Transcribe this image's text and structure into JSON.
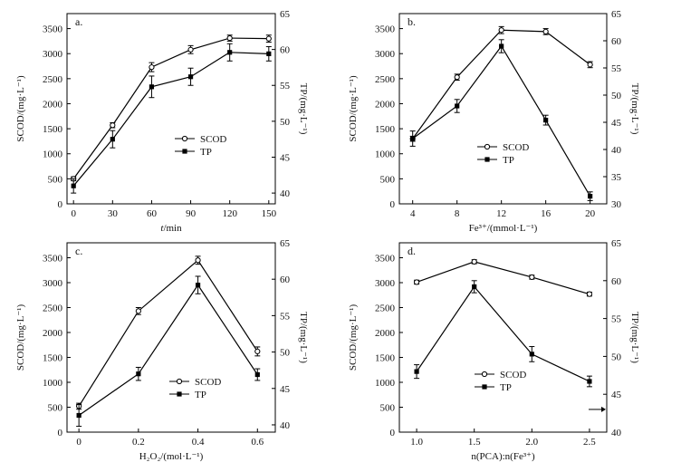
{
  "chart_data": [
    {
      "type": "line",
      "panel_label": "a.",
      "xlabel_italic": "t",
      "xlabel_rest": "/min",
      "ylabel": "SCOD/(mg·L⁻¹)",
      "y2label": "TP/(mg·L⁻¹)",
      "x_ticks": [
        "0",
        "30",
        "60",
        "90",
        "120",
        "150"
      ],
      "x": [
        0,
        30,
        60,
        90,
        120,
        150
      ],
      "xlim": [
        -5,
        155
      ],
      "ylim": [
        0,
        3800
      ],
      "y_ticks": [
        "0",
        "500",
        "1000",
        "1500",
        "2000",
        "2500",
        "3000",
        "3500"
      ],
      "y2lim": [
        38.5,
        65
      ],
      "y2_ticks": [
        "40",
        "45",
        "50",
        "55",
        "60",
        "65"
      ],
      "legend": [
        "SCOD",
        "TP"
      ],
      "series": [
        {
          "name": "SCOD",
          "axis": "left",
          "marker": "open",
          "values": [
            500,
            1570,
            2730,
            3080,
            3310,
            3300
          ],
          "errors": [
            40,
            50,
            90,
            80,
            60,
            70
          ]
        },
        {
          "name": "TP",
          "axis": "right",
          "marker": "filled",
          "values": [
            41.0,
            47.5,
            54.8,
            56.2,
            59.6,
            59.4
          ],
          "errors": [
            1.0,
            1.2,
            1.5,
            1.2,
            1.2,
            1.0
          ]
        }
      ]
    },
    {
      "type": "line",
      "panel_label": "b.",
      "xlabel_html": "Fe³⁺/(mmol·L⁻¹)",
      "ylabel": "SCOD/(mg·L⁻¹)",
      "y2label": "TP/(mg·L⁻¹)",
      "x_ticks": [
        "4",
        "8",
        "12",
        "16",
        "20"
      ],
      "x": [
        4,
        8,
        12,
        16,
        20
      ],
      "xlim": [
        2.8,
        21.5
      ],
      "ylim": [
        0,
        3800
      ],
      "y_ticks": [
        "0",
        "500",
        "1000",
        "1500",
        "2000",
        "2500",
        "3000",
        "3500"
      ],
      "y2lim": [
        30,
        65
      ],
      "y2_ticks": [
        "30",
        "35",
        "40",
        "45",
        "50",
        "55",
        "60",
        "65"
      ],
      "legend": [
        "SCOD",
        "TP"
      ],
      "series": [
        {
          "name": "SCOD",
          "axis": "left",
          "marker": "open",
          "values": [
            1300,
            2530,
            3470,
            3440,
            2780
          ],
          "errors": [
            50,
            60,
            70,
            60,
            60
          ]
        },
        {
          "name": "TP",
          "axis": "right",
          "marker": "filled",
          "values": [
            42.0,
            48.0,
            59.0,
            45.4,
            31.4
          ],
          "errors": [
            1.4,
            1.2,
            1.2,
            0.9,
            0.8
          ]
        }
      ]
    },
    {
      "type": "line",
      "panel_label": "c.",
      "xlabel_html": "H₂O₂/(mol·L⁻¹)",
      "ylabel": "SCOD/(mg·L⁻¹)",
      "y2label": "TP/(mg·L⁻¹)",
      "x_ticks": [
        "0",
        "0.2",
        "0.4",
        "0.6"
      ],
      "x": [
        0,
        0.2,
        0.4,
        0.6
      ],
      "xlim": [
        -0.04,
        0.66
      ],
      "ylim": [
        0,
        3800
      ],
      "y_ticks": [
        "0",
        "500",
        "1000",
        "1500",
        "2000",
        "2500",
        "3000",
        "3500"
      ],
      "y2lim": [
        39,
        65
      ],
      "y2_ticks": [
        "40",
        "45",
        "50",
        "55",
        "60",
        "65"
      ],
      "legend": [
        "SCOD",
        "TP"
      ],
      "series": [
        {
          "name": "SCOD",
          "axis": "left",
          "marker": "open",
          "values": [
            520,
            2430,
            3450,
            1620
          ],
          "errors": [
            60,
            70,
            80,
            90
          ]
        },
        {
          "name": "TP",
          "axis": "right",
          "marker": "filled",
          "values": [
            41.3,
            47.0,
            59.2,
            46.9
          ],
          "errors": [
            1.5,
            0.9,
            1.2,
            0.8
          ]
        }
      ]
    },
    {
      "type": "line",
      "panel_label": "d.",
      "xlabel_html": "n(PCA):n(Fe³⁺)",
      "ylabel": "SCOD/(mg·L⁻¹)",
      "y2label": "TP/(mg·L⁻¹)",
      "x_ticks": [
        "1.0",
        "1.5",
        "2.0",
        "2.5"
      ],
      "x": [
        1.0,
        1.5,
        2.0,
        2.5
      ],
      "xlim": [
        0.85,
        2.65
      ],
      "ylim": [
        0,
        3800
      ],
      "y_ticks": [
        "0",
        "500",
        "1000",
        "1500",
        "2000",
        "2500",
        "3000",
        "3500"
      ],
      "y2lim": [
        40,
        65
      ],
      "y2_ticks": [
        "40",
        "45",
        "50",
        "55",
        "60",
        "65"
      ],
      "legend": [
        "SCOD",
        "TP"
      ],
      "annotation": "arrow pointing to right axis",
      "series": [
        {
          "name": "SCOD",
          "axis": "left",
          "marker": "open",
          "values": [
            3010,
            3420,
            3110,
            2770
          ],
          "errors": [
            40,
            40,
            40,
            40
          ]
        },
        {
          "name": "TP",
          "axis": "right",
          "marker": "filled",
          "values": [
            48.0,
            59.2,
            50.3,
            46.7
          ],
          "errors": [
            0.9,
            0.8,
            1.0,
            0.7
          ]
        }
      ]
    }
  ]
}
